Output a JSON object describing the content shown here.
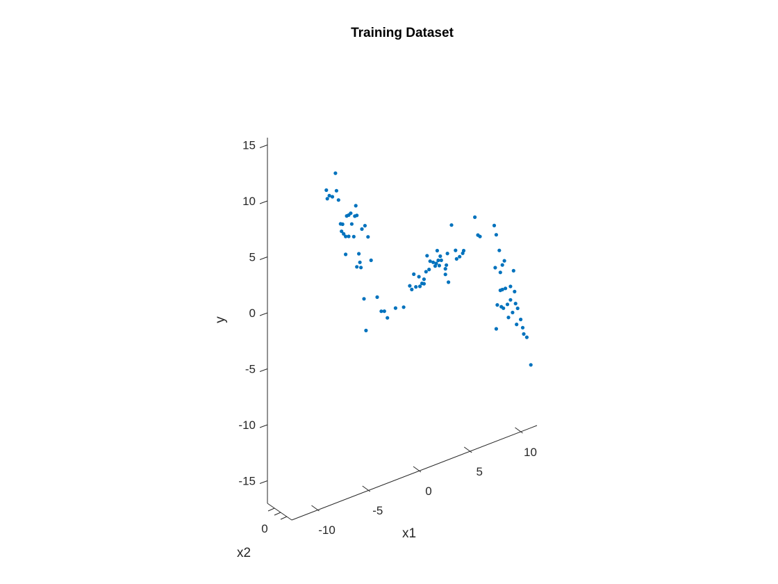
{
  "chart_data": {
    "type": "scatter",
    "title": "Training Dataset",
    "xlabel": "x1",
    "zlabel": "x2",
    "ylabel": "y",
    "xlim": [
      -12,
      11
    ],
    "ylim": [
      -17,
      16
    ],
    "x_ticks": [
      {
        "value": -10,
        "label": "-10"
      },
      {
        "value": -5,
        "label": "-5"
      },
      {
        "value": 0,
        "label": "0"
      },
      {
        "value": 5,
        "label": "5"
      },
      {
        "value": 10,
        "label": "10"
      }
    ],
    "y_ticks": [
      {
        "value": 15,
        "label": "15"
      },
      {
        "value": 10,
        "label": "10"
      },
      {
        "value": 5,
        "label": "5"
      },
      {
        "value": 0,
        "label": "0"
      },
      {
        "value": -5,
        "label": "-5"
      },
      {
        "value": -10,
        "label": "-10"
      },
      {
        "value": -15,
        "label": "-15"
      }
    ],
    "z_ticks": [
      {
        "value": 0,
        "label": "0"
      }
    ],
    "grid": false,
    "marker_color": "#0072BD",
    "points": [
      {
        "x": -9.3,
        "y": 14.2
      },
      {
        "x": -9.2,
        "y": 13.4
      },
      {
        "x": -9.0,
        "y": 13.6
      },
      {
        "x": -8.7,
        "y": 13.4
      },
      {
        "x": -8.4,
        "y": 15.4
      },
      {
        "x": -8.3,
        "y": 13.8
      },
      {
        "x": -8.1,
        "y": 12.9
      },
      {
        "x": -7.9,
        "y": 10.7
      },
      {
        "x": -7.8,
        "y": 10.0
      },
      {
        "x": -7.7,
        "y": 10.6
      },
      {
        "x": -7.6,
        "y": 9.7
      },
      {
        "x": -7.4,
        "y": 7.8
      },
      {
        "x": -7.4,
        "y": 9.4
      },
      {
        "x": -7.3,
        "y": 11.2
      },
      {
        "x": -7.1,
        "y": 11.2
      },
      {
        "x": -7.1,
        "y": 9.3
      },
      {
        "x": -6.9,
        "y": 11.3
      },
      {
        "x": -6.8,
        "y": 10.3
      },
      {
        "x": -6.6,
        "y": 9.1
      },
      {
        "x": -6.5,
        "y": 10.9
      },
      {
        "x": -6.4,
        "y": 11.8
      },
      {
        "x": -6.3,
        "y": 10.9
      },
      {
        "x": -6.3,
        "y": 6.3
      },
      {
        "x": -6.1,
        "y": 7.4
      },
      {
        "x": -6.0,
        "y": 6.6
      },
      {
        "x": -5.9,
        "y": 6.1
      },
      {
        "x": -5.8,
        "y": 9.5
      },
      {
        "x": -5.6,
        "y": 3.2
      },
      {
        "x": -5.5,
        "y": 9.7
      },
      {
        "x": -5.4,
        "y": 0.3
      },
      {
        "x": -5.2,
        "y": 8.6
      },
      {
        "x": -4.9,
        "y": 6.4
      },
      {
        "x": -4.3,
        "y": 2.9
      },
      {
        "x": -3.9,
        "y": 1.5
      },
      {
        "x": -3.6,
        "y": 1.4
      },
      {
        "x": -3.3,
        "y": 0.7
      },
      {
        "x": -2.5,
        "y": 1.3
      },
      {
        "x": -1.7,
        "y": 1.1
      },
      {
        "x": -1.1,
        "y": 2.8
      },
      {
        "x": -0.9,
        "y": 2.4
      },
      {
        "x": -0.7,
        "y": 3.7
      },
      {
        "x": -0.5,
        "y": 2.5
      },
      {
        "x": -0.2,
        "y": 3.3
      },
      {
        "x": -0.1,
        "y": 2.4
      },
      {
        "x": 0.1,
        "y": 2.6
      },
      {
        "x": 0.3,
        "y": 2.5
      },
      {
        "x": 0.3,
        "y": 2.9
      },
      {
        "x": 0.5,
        "y": 3.5
      },
      {
        "x": 0.6,
        "y": 4.9
      },
      {
        "x": 0.8,
        "y": 3.6
      },
      {
        "x": 0.9,
        "y": 4.3
      },
      {
        "x": 1.2,
        "y": 4.1
      },
      {
        "x": 1.4,
        "y": 3.7
      },
      {
        "x": 1.5,
        "y": 3.9
      },
      {
        "x": 1.6,
        "y": 5.0
      },
      {
        "x": 1.7,
        "y": 4.1
      },
      {
        "x": 1.8,
        "y": 3.6
      },
      {
        "x": 1.9,
        "y": 4.4
      },
      {
        "x": 2.0,
        "y": 4.0
      },
      {
        "x": 2.4,
        "y": 2.6
      },
      {
        "x": 2.4,
        "y": 3.1
      },
      {
        "x": 2.5,
        "y": 3.4
      },
      {
        "x": 2.6,
        "y": 4.4
      },
      {
        "x": 2.7,
        "y": 1.8
      },
      {
        "x": 3.0,
        "y": 6.8
      },
      {
        "x": 3.4,
        "y": 4.4
      },
      {
        "x": 3.5,
        "y": 3.6
      },
      {
        "x": 3.8,
        "y": 3.7
      },
      {
        "x": 4.1,
        "y": 3.9
      },
      {
        "x": 4.2,
        "y": 4.1
      },
      {
        "x": 5.3,
        "y": 6.7
      },
      {
        "x": 5.6,
        "y": 5.0
      },
      {
        "x": 5.8,
        "y": 4.8
      },
      {
        "x": 7.2,
        "y": 5.3
      },
      {
        "x": 7.3,
        "y": 1.5
      },
      {
        "x": 7.4,
        "y": -4.0
      },
      {
        "x": 7.4,
        "y": 4.4
      },
      {
        "x": 7.5,
        "y": -1.9
      },
      {
        "x": 7.7,
        "y": 2.9
      },
      {
        "x": 7.8,
        "y": -0.7
      },
      {
        "x": 7.8,
        "y": 0.9
      },
      {
        "x": 7.9,
        "y": -2.2
      },
      {
        "x": 8.0,
        "y": 1.5
      },
      {
        "x": 8.0,
        "y": -0.7
      },
      {
        "x": 8.1,
        "y": -2.4
      },
      {
        "x": 8.2,
        "y": 1.8
      },
      {
        "x": 8.3,
        "y": -0.7
      },
      {
        "x": 8.5,
        "y": -2.2
      },
      {
        "x": 8.6,
        "y": -3.4
      },
      {
        "x": 8.8,
        "y": -0.7
      },
      {
        "x": 8.8,
        "y": -1.9
      },
      {
        "x": 9.0,
        "y": -3.1
      },
      {
        "x": 9.1,
        "y": 0.6
      },
      {
        "x": 9.2,
        "y": -1.3
      },
      {
        "x": 9.3,
        "y": -2.4
      },
      {
        "x": 9.4,
        "y": -4.3
      },
      {
        "x": 9.5,
        "y": -2.9
      },
      {
        "x": 9.8,
        "y": -4.0
      },
      {
        "x": 10.0,
        "y": -4.8
      },
      {
        "x": 10.1,
        "y": -5.4
      },
      {
        "x": 10.4,
        "y": -5.8
      },
      {
        "x": 10.8,
        "y": -8.4
      }
    ]
  }
}
